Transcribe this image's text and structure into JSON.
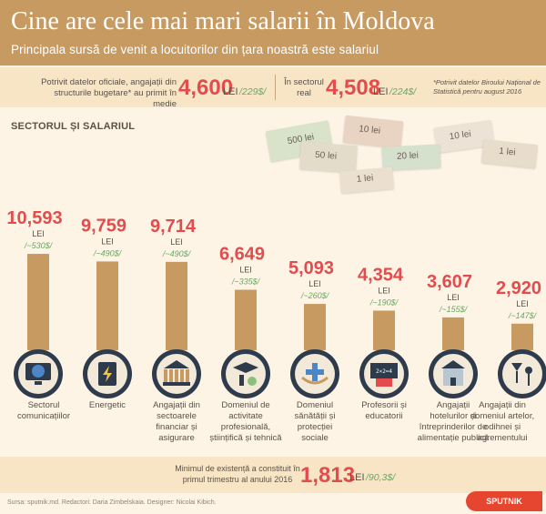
{
  "header": {
    "title": "Cine are cele mai mari salarii în Moldova",
    "subtitle": "Principala sursă de venit a locuitorilor din țara noastră este salariul"
  },
  "info": {
    "left_text_1": "Potrivit datelor oficiale, angajații din",
    "left_text_2": "structurile bugetare* au primit în medie",
    "left_value": "4,600",
    "left_lei": "LEI",
    "left_usd": "/229$/",
    "right_text_1": "În sectorul",
    "right_text_2": "real",
    "right_value": "4,508",
    "right_lei": "LEI",
    "right_usd": "/224$/",
    "note": "*Potrivit datelor Biroului Național de Statistică pentru august 2016"
  },
  "section_heading": "SECTORUL ȘI SALARIUL",
  "banknotes": [
    "500 lei",
    "10 lei",
    "50 lei",
    "10 lei",
    "20 lei",
    "1 lei",
    "1 lei"
  ],
  "colors": {
    "header": "#c79a62",
    "bar": "#c79a62",
    "value": "#e24c4d",
    "usd": "#69a964",
    "icon_circle": "#2d3b4c"
  },
  "chart_data": {
    "type": "bar",
    "ylim": [
      0,
      11500
    ],
    "categories": [
      "Sectorul comunicațiilor",
      "Energetic",
      "Angajații din sectoarele financiar și asigurare",
      "Domeniul de activitate profesională, științifică și tehnică",
      "Domeniul sănătății și protecției sociale",
      "Profesorii și educatorii",
      "Angajații hotelurilor și întreprinderilor de alimentație publică",
      "Angajații din domeniul artelor, odihnei și agrementului"
    ],
    "label_lines": [
      [
        "Sectorul",
        "comunicațiilor"
      ],
      [
        "Energetic"
      ],
      [
        "Angajații din",
        "sectoarele",
        "financiar și",
        "asigurare"
      ],
      [
        "Domeniul de",
        "activitate",
        "profesională,",
        "științifică și tehnică"
      ],
      [
        "Domeniul",
        "sănătății și",
        "protecției",
        "sociale"
      ],
      [
        "Profesorii și",
        "educatorii"
      ],
      [
        "Angajații",
        "hotelurilor și",
        "întreprinderilor de",
        "alimentație publică"
      ],
      [
        "Angajații din",
        "domeniul artelor,",
        "odihnei și",
        "agrementului"
      ]
    ],
    "value_labels": [
      "10,593",
      "9,759",
      "9,714",
      "6,649",
      "5,093",
      "4,354",
      "3,607",
      "2,920"
    ],
    "values": [
      10593,
      9759,
      9714,
      6649,
      5093,
      4354,
      3607,
      2920
    ],
    "unit": "LEI",
    "usd": [
      "/~530$/",
      "/~490$/",
      "/~490$/",
      "/~335$/",
      "/~260$/",
      "/~190$/",
      "/~155$/",
      "/~147$/"
    ],
    "icons": [
      "globe-monitor-icon",
      "power-plant-icon",
      "bank-icon",
      "microscope-icon",
      "health-icon",
      "school-board-icon",
      "hotel-icon",
      "arts-icon"
    ]
  },
  "footer": {
    "text_1": "Minimul de existență a constituit în",
    "text_2": "primul trimestru al anului 2016",
    "value": "1,813",
    "lei": "LEI",
    "usd": "/90,3$/",
    "source": "Sursa: sputnik.md. Redactori: Daria Zimbelskaia. Designer: Nicolai Kibich.",
    "logo": "SPUTNIK"
  }
}
